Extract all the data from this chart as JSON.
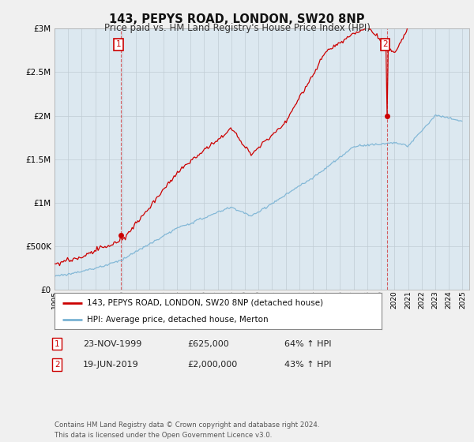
{
  "title": "143, PEPYS ROAD, LONDON, SW20 8NP",
  "subtitle": "Price paid vs. HM Land Registry's House Price Index (HPI)",
  "sale1_date": "23-NOV-1999",
  "sale1_price": 625000,
  "sale1_pct": "64% ↑ HPI",
  "sale2_date": "19-JUN-2019",
  "sale2_price": 2000000,
  "sale2_pct": "43% ↑ HPI",
  "legend_label1": "143, PEPYS ROAD, LONDON, SW20 8NP (detached house)",
  "legend_label2": "HPI: Average price, detached house, Merton",
  "footer": "Contains HM Land Registry data © Crown copyright and database right 2024.\nThis data is licensed under the Open Government Licence v3.0.",
  "hpi_color": "#7ab3d4",
  "price_color": "#cc0000",
  "dashed_color": "#cc0000",
  "ylim": [
    0,
    3000000
  ],
  "yticks": [
    0,
    500000,
    1000000,
    1500000,
    2000000,
    2500000,
    3000000
  ],
  "bg_color": "#f0f0f0",
  "plot_bg_color": "#dce8f0"
}
